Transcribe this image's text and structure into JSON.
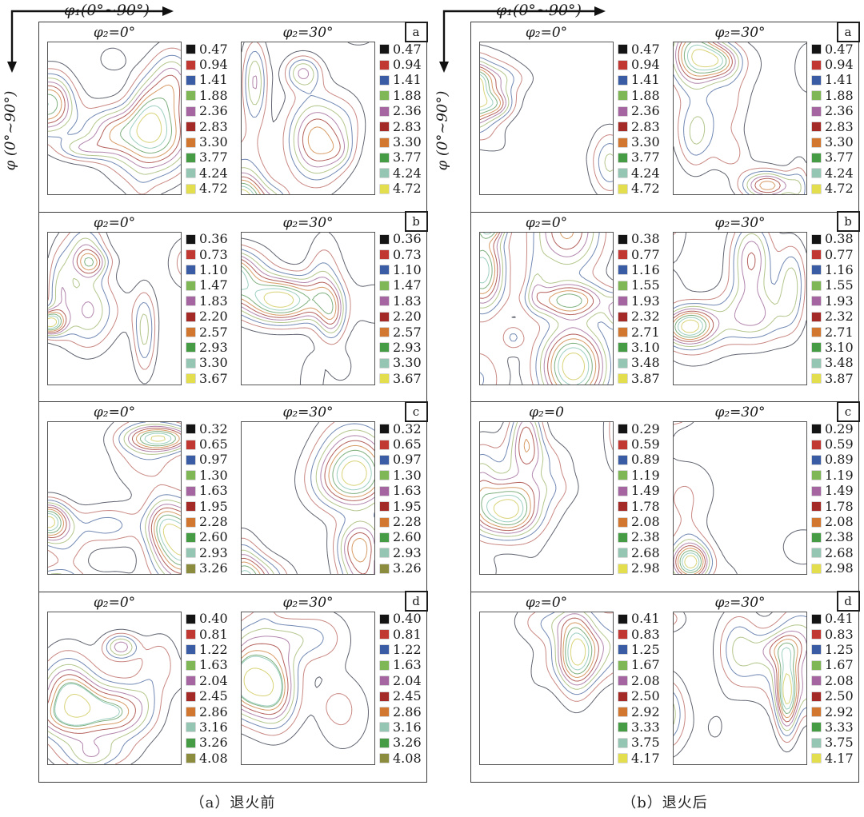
{
  "figure": {
    "phi1_label": "φ₁(0°~90°)",
    "phi_label": "φ (0°~90°)",
    "background": "#ffffff",
    "border_color": "#3c3c3c"
  },
  "legend": {
    "default_colors": [
      "#141414",
      "#c13832",
      "#3a5ca5",
      "#7fb757",
      "#a565a0",
      "#a32a26",
      "#d2772f",
      "#459c45",
      "#95c6b3",
      "#e3de4e"
    ],
    "stroke_colors": [
      "#606470",
      "#c98883",
      "#7289b4",
      "#b3c68c",
      "#b286ad",
      "#b4605b",
      "#d79b66",
      "#7fb07f",
      "#9ccfc0",
      "#d8d378"
    ]
  },
  "columns": [
    {
      "caption": "（a）退火前",
      "panels": [
        {
          "corner": "a",
          "levels": [
            "0.47",
            "0.94",
            "1.41",
            "1.88",
            "2.36",
            "2.83",
            "3.30",
            "3.77",
            "4.24",
            "4.72"
          ],
          "subplots": [
            {
              "title": "φ₂=0°",
              "seed": 3
            },
            {
              "title": "φ₂=30°",
              "seed": 7
            }
          ]
        },
        {
          "corner": "b",
          "levels": [
            "0.36",
            "0.73",
            "1.10",
            "1.47",
            "1.83",
            "2.20",
            "2.57",
            "2.93",
            "3.30",
            "3.67"
          ],
          "subplots": [
            {
              "title": "φ₂=0°",
              "seed": 12
            },
            {
              "title": "φ₂=30°",
              "seed": 19
            }
          ]
        },
        {
          "corner": "c",
          "levels": [
            "0.32",
            "0.65",
            "0.97",
            "1.30",
            "1.63",
            "1.95",
            "2.28",
            "2.60",
            "2.93",
            "3.26"
          ],
          "colors": [
            "#141414",
            "#c13832",
            "#3a5ca5",
            "#7fb757",
            "#a565a0",
            "#a32a26",
            "#d2772f",
            "#459c45",
            "#95c6b3",
            "#8c8c3e"
          ],
          "subplots": [
            {
              "title": "φ₂=0°",
              "seed": 23
            },
            {
              "title": "φ₂=30°",
              "seed": 31
            }
          ]
        },
        {
          "corner": "d",
          "levels": [
            "0.40",
            "0.81",
            "1.22",
            "1.63",
            "2.04",
            "2.45",
            "2.86",
            "3.16",
            "3.26",
            "4.08"
          ],
          "colors": [
            "#141414",
            "#c13832",
            "#3a5ca5",
            "#7fb757",
            "#a565a0",
            "#a32a26",
            "#d2772f",
            "#95c6b3",
            "#459c45",
            "#8c8c3e"
          ],
          "subplots": [
            {
              "title": "φ₂=0°",
              "seed": 41
            },
            {
              "title": "φ₂=30°",
              "seed": 47
            }
          ]
        }
      ]
    },
    {
      "caption": "（b）退火后",
      "panels": [
        {
          "corner": "a",
          "levels": [
            "0.47",
            "0.94",
            "1.41",
            "1.88",
            "2.36",
            "2.83",
            "3.30",
            "3.77",
            "4.24",
            "4.72"
          ],
          "subplots": [
            {
              "title": "φ₂=0°",
              "seed": 52
            },
            {
              "title": "φ₂=30°",
              "seed": 57
            }
          ]
        },
        {
          "corner": "b",
          "levels": [
            "0.38",
            "0.77",
            "1.16",
            "1.55",
            "1.93",
            "2.32",
            "2.71",
            "3.10",
            "3.48",
            "3.87"
          ],
          "subplots": [
            {
              "title": "φ₂=0°",
              "seed": 63
            },
            {
              "title": "φ₂=30°",
              "seed": 71
            }
          ]
        },
        {
          "corner": "c",
          "levels": [
            "0.29",
            "0.59",
            "0.89",
            "1.19",
            "1.49",
            "1.78",
            "2.08",
            "2.38",
            "2.68",
            "2.98"
          ],
          "subplots": [
            {
              "title": "φ₂=0",
              "seed": 83
            },
            {
              "title": "φ₂=30°",
              "seed": 89
            }
          ]
        },
        {
          "corner": "d",
          "levels": [
            "0.41",
            "0.83",
            "1.25",
            "1.67",
            "2.08",
            "2.50",
            "2.92",
            "3.33",
            "3.75",
            "4.17"
          ],
          "subplots": [
            {
              "title": "φ₂=0°",
              "seed": 95
            },
            {
              "title": "φ₂=30°",
              "seed": 99
            }
          ]
        }
      ]
    }
  ],
  "chart_data": [
    {
      "type": "contour",
      "group": "退火前",
      "panel": "a",
      "subplot_titles": [
        "φ₂=0°",
        "φ₂=30°"
      ],
      "levels": [
        0.47,
        0.94,
        1.41,
        1.88,
        2.36,
        2.83,
        3.3,
        3.77,
        4.24,
        4.72
      ],
      "xlabel": "φ₁(0°~90°)",
      "ylabel": "φ (0°~90°)",
      "x_range": [
        0,
        90
      ],
      "y_range": [
        0,
        90
      ]
    },
    {
      "type": "contour",
      "group": "退火前",
      "panel": "b",
      "subplot_titles": [
        "φ₂=0°",
        "φ₂=30°"
      ],
      "levels": [
        0.36,
        0.73,
        1.1,
        1.47,
        1.83,
        2.2,
        2.57,
        2.93,
        3.3,
        3.67
      ],
      "xlabel": "φ₁(0°~90°)",
      "ylabel": "φ (0°~90°)",
      "x_range": [
        0,
        90
      ],
      "y_range": [
        0,
        90
      ]
    },
    {
      "type": "contour",
      "group": "退火前",
      "panel": "c",
      "subplot_titles": [
        "φ₂=0°",
        "φ₂=30°"
      ],
      "levels": [
        0.32,
        0.65,
        0.97,
        1.3,
        1.63,
        1.95,
        2.28,
        2.6,
        2.93,
        3.26
      ],
      "xlabel": "φ₁(0°~90°)",
      "ylabel": "φ (0°~90°)",
      "x_range": [
        0,
        90
      ],
      "y_range": [
        0,
        90
      ]
    },
    {
      "type": "contour",
      "group": "退火前",
      "panel": "d",
      "subplot_titles": [
        "φ₂=0°",
        "φ₂=30°"
      ],
      "levels": [
        0.4,
        0.81,
        1.22,
        1.63,
        2.04,
        2.45,
        2.86,
        3.16,
        3.26,
        4.08
      ],
      "xlabel": "φ₁(0°~90°)",
      "ylabel": "φ (0°~90°)",
      "x_range": [
        0,
        90
      ],
      "y_range": [
        0,
        90
      ]
    },
    {
      "type": "contour",
      "group": "退火后",
      "panel": "a",
      "subplot_titles": [
        "φ₂=0°",
        "φ₂=30°"
      ],
      "levels": [
        0.47,
        0.94,
        1.41,
        1.88,
        2.36,
        2.83,
        3.3,
        3.77,
        4.24,
        4.72
      ],
      "xlabel": "φ₁(0°~90°)",
      "ylabel": "φ (0°~90°)",
      "x_range": [
        0,
        90
      ],
      "y_range": [
        0,
        90
      ]
    },
    {
      "type": "contour",
      "group": "退火后",
      "panel": "b",
      "subplot_titles": [
        "φ₂=0°",
        "φ₂=30°"
      ],
      "levels": [
        0.38,
        0.77,
        1.16,
        1.55,
        1.93,
        2.32,
        2.71,
        3.1,
        3.48,
        3.87
      ],
      "xlabel": "φ₁(0°~90°)",
      "ylabel": "φ (0°~90°)",
      "x_range": [
        0,
        90
      ],
      "y_range": [
        0,
        90
      ]
    },
    {
      "type": "contour",
      "group": "退火后",
      "panel": "c",
      "subplot_titles": [
        "φ₂=0",
        "φ₂=30°"
      ],
      "levels": [
        0.29,
        0.59,
        0.89,
        1.19,
        1.49,
        1.78,
        2.08,
        2.38,
        2.68,
        2.98
      ],
      "xlabel": "φ₁(0°~90°)",
      "ylabel": "φ (0°~90°)",
      "x_range": [
        0,
        90
      ],
      "y_range": [
        0,
        90
      ]
    },
    {
      "type": "contour",
      "group": "退火后",
      "panel": "d",
      "subplot_titles": [
        "φ₂=0°",
        "φ₂=30°"
      ],
      "levels": [
        0.41,
        0.83,
        1.25,
        1.67,
        2.08,
        2.5,
        2.92,
        3.33,
        3.75,
        4.17
      ],
      "xlabel": "φ₁(0°~90°)",
      "ylabel": "φ (0°~90°)",
      "x_range": [
        0,
        90
      ],
      "y_range": [
        0,
        90
      ]
    }
  ]
}
